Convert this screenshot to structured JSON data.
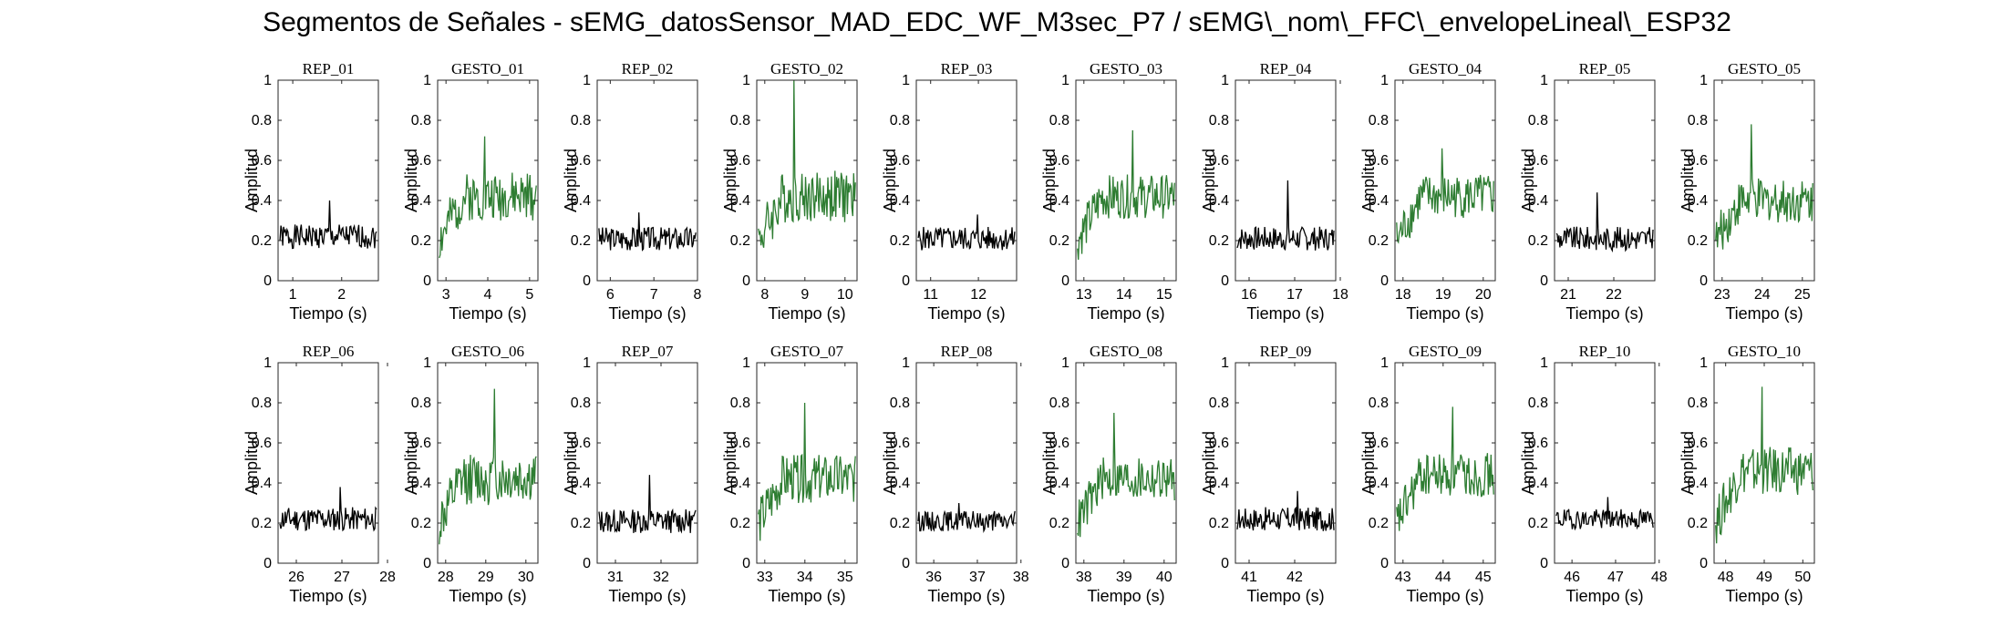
{
  "figure": {
    "title": "Segmentos de Señales - sEMG_datosSensor_MAD_EDC_WF_M3sec_P7 / sEMG\\_nom\\_FFC\\_envelopeLineal\\_ESP32"
  },
  "colors": {
    "rep": "#000000",
    "gesto": "#2e7d32"
  },
  "chart_data": [
    {
      "type": "line",
      "title": "REP_01",
      "xlabel": "Tiempo (s)",
      "ylabel": "Amplitud",
      "xlim": [
        0.7,
        2.75
      ],
      "ylim": [
        0,
        1
      ],
      "xticks": [
        1,
        2
      ],
      "yticks": [
        0,
        0.2,
        0.4,
        0.6,
        0.8,
        1
      ],
      "color": "#000000",
      "seed": 1,
      "base": 0.22,
      "spread": 0.06,
      "peak": 0.4
    },
    {
      "type": "line",
      "title": "GESTO_01",
      "xlabel": "Tiempo (s)",
      "ylabel": "Amplitud",
      "xlim": [
        2.8,
        5.2
      ],
      "ylim": [
        0,
        1
      ],
      "xticks": [
        3,
        4,
        5
      ],
      "yticks": [
        0,
        0.2,
        0.4,
        0.6,
        0.8,
        1
      ],
      "color": "#2e7d32",
      "seed": 2,
      "base": 0.42,
      "spread": 0.12,
      "peak": 0.72
    },
    {
      "type": "line",
      "title": "REP_02",
      "xlabel": "Tiempo (s)",
      "ylabel": "Amplitud",
      "xlim": [
        5.7,
        8.0
      ],
      "ylim": [
        0,
        1
      ],
      "xticks": [
        6,
        7,
        8
      ],
      "yticks": [
        0,
        0.2,
        0.4,
        0.6,
        0.8,
        1
      ],
      "color": "#000000",
      "seed": 3,
      "base": 0.21,
      "spread": 0.06,
      "peak": 0.34
    },
    {
      "type": "line",
      "title": "GESTO_02",
      "xlabel": "Tiempo (s)",
      "ylabel": "Amplitud",
      "xlim": [
        7.8,
        10.3
      ],
      "ylim": [
        0,
        1
      ],
      "xticks": [
        8,
        9,
        10
      ],
      "yticks": [
        0,
        0.2,
        0.4,
        0.6,
        0.8,
        1
      ],
      "color": "#2e7d32",
      "seed": 4,
      "base": 0.42,
      "spread": 0.13,
      "peak": 1.0
    },
    {
      "type": "line",
      "title": "REP_03",
      "xlabel": "Tiempo (s)",
      "ylabel": "Amplitud",
      "xlim": [
        10.7,
        12.8
      ],
      "ylim": [
        0,
        1
      ],
      "xticks": [
        11,
        12
      ],
      "yticks": [
        0,
        0.2,
        0.4,
        0.6,
        0.8,
        1
      ],
      "color": "#000000",
      "seed": 5,
      "base": 0.21,
      "spread": 0.06,
      "peak": 0.33
    },
    {
      "type": "line",
      "title": "GESTO_03",
      "xlabel": "Tiempo (s)",
      "ylabel": "Amplitud",
      "xlim": [
        12.8,
        15.3
      ],
      "ylim": [
        0,
        1
      ],
      "xticks": [
        13,
        14,
        15
      ],
      "yticks": [
        0,
        0.2,
        0.4,
        0.6,
        0.8,
        1
      ],
      "color": "#2e7d32",
      "seed": 6,
      "base": 0.42,
      "spread": 0.11,
      "peak": 0.75
    },
    {
      "type": "line",
      "title": "REP_04",
      "xlabel": "Tiempo (s)",
      "ylabel": "Amplitud",
      "xlim": [
        15.7,
        17.9
      ],
      "ylim": [
        0,
        1
      ],
      "xticks": [
        16,
        17,
        18
      ],
      "yticks": [
        0,
        0.2,
        0.4,
        0.6,
        0.8,
        1
      ],
      "color": "#000000",
      "seed": 7,
      "base": 0.21,
      "spread": 0.06,
      "peak": 0.5
    },
    {
      "type": "line",
      "title": "GESTO_04",
      "xlabel": "Tiempo (s)",
      "ylabel": "Amplitud",
      "xlim": [
        17.8,
        20.3
      ],
      "ylim": [
        0,
        1
      ],
      "xticks": [
        18,
        19,
        20
      ],
      "yticks": [
        0,
        0.2,
        0.4,
        0.6,
        0.8,
        1
      ],
      "color": "#2e7d32",
      "seed": 8,
      "base": 0.42,
      "spread": 0.11,
      "peak": 0.66
    },
    {
      "type": "line",
      "title": "REP_05",
      "xlabel": "Tiempo (s)",
      "ylabel": "Amplitud",
      "xlim": [
        20.7,
        22.9
      ],
      "ylim": [
        0,
        1
      ],
      "xticks": [
        21,
        22
      ],
      "yticks": [
        0,
        0.2,
        0.4,
        0.6,
        0.8,
        1
      ],
      "color": "#000000",
      "seed": 9,
      "base": 0.21,
      "spread": 0.06,
      "peak": 0.44
    },
    {
      "type": "line",
      "title": "GESTO_05",
      "xlabel": "Tiempo (s)",
      "ylabel": "Amplitud",
      "xlim": [
        22.8,
        25.3
      ],
      "ylim": [
        0,
        1
      ],
      "xticks": [
        23,
        24,
        25
      ],
      "yticks": [
        0,
        0.2,
        0.4,
        0.6,
        0.8,
        1
      ],
      "color": "#2e7d32",
      "seed": 10,
      "base": 0.4,
      "spread": 0.11,
      "peak": 0.78
    },
    {
      "type": "line",
      "title": "REP_06",
      "xlabel": "Tiempo (s)",
      "ylabel": "Amplitud",
      "xlim": [
        25.6,
        27.8
      ],
      "ylim": [
        0,
        1
      ],
      "xticks": [
        26,
        27,
        28
      ],
      "yticks": [
        0,
        0.2,
        0.4,
        0.6,
        0.8,
        1
      ],
      "color": "#000000",
      "seed": 11,
      "base": 0.22,
      "spread": 0.06,
      "peak": 0.38
    },
    {
      "type": "line",
      "title": "GESTO_06",
      "xlabel": "Tiempo (s)",
      "ylabel": "Amplitud",
      "xlim": [
        27.8,
        30.3
      ],
      "ylim": [
        0,
        1
      ],
      "xticks": [
        28,
        29,
        30
      ],
      "yticks": [
        0,
        0.2,
        0.4,
        0.6,
        0.8,
        1
      ],
      "color": "#2e7d32",
      "seed": 12,
      "base": 0.42,
      "spread": 0.13,
      "peak": 0.87
    },
    {
      "type": "line",
      "title": "REP_07",
      "xlabel": "Tiempo (s)",
      "ylabel": "Amplitud",
      "xlim": [
        30.6,
        32.8
      ],
      "ylim": [
        0,
        1
      ],
      "xticks": [
        31,
        32
      ],
      "yticks": [
        0,
        0.2,
        0.4,
        0.6,
        0.8,
        1
      ],
      "color": "#000000",
      "seed": 13,
      "base": 0.21,
      "spread": 0.06,
      "peak": 0.44
    },
    {
      "type": "line",
      "title": "GESTO_07",
      "xlabel": "Tiempo (s)",
      "ylabel": "Amplitud",
      "xlim": [
        32.8,
        35.3
      ],
      "ylim": [
        0,
        1
      ],
      "xticks": [
        33,
        34,
        35
      ],
      "yticks": [
        0,
        0.2,
        0.4,
        0.6,
        0.8,
        1
      ],
      "color": "#2e7d32",
      "seed": 14,
      "base": 0.42,
      "spread": 0.12,
      "peak": 0.8
    },
    {
      "type": "line",
      "title": "REP_08",
      "xlabel": "Tiempo (s)",
      "ylabel": "Amplitud",
      "xlim": [
        35.6,
        37.9
      ],
      "ylim": [
        0,
        1
      ],
      "xticks": [
        36,
        37,
        38
      ],
      "yticks": [
        0,
        0.2,
        0.4,
        0.6,
        0.8,
        1
      ],
      "color": "#000000",
      "seed": 15,
      "base": 0.21,
      "spread": 0.05,
      "peak": 0.3
    },
    {
      "type": "line",
      "title": "GESTO_08",
      "xlabel": "Tiempo (s)",
      "ylabel": "Amplitud",
      "xlim": [
        37.8,
        40.3
      ],
      "ylim": [
        0,
        1
      ],
      "xticks": [
        38,
        39,
        40
      ],
      "yticks": [
        0,
        0.2,
        0.4,
        0.6,
        0.8,
        1
      ],
      "color": "#2e7d32",
      "seed": 16,
      "base": 0.42,
      "spread": 0.11,
      "peak": 0.75
    },
    {
      "type": "line",
      "title": "REP_09",
      "xlabel": "Tiempo (s)",
      "ylabel": "Amplitud",
      "xlim": [
        40.7,
        42.9
      ],
      "ylim": [
        0,
        1
      ],
      "xticks": [
        41,
        42
      ],
      "yticks": [
        0,
        0.2,
        0.4,
        0.6,
        0.8,
        1
      ],
      "color": "#000000",
      "seed": 17,
      "base": 0.22,
      "spread": 0.06,
      "peak": 0.36
    },
    {
      "type": "line",
      "title": "GESTO_09",
      "xlabel": "Tiempo (s)",
      "ylabel": "Amplitud",
      "xlim": [
        42.8,
        45.3
      ],
      "ylim": [
        0,
        1
      ],
      "xticks": [
        43,
        44,
        45
      ],
      "yticks": [
        0,
        0.2,
        0.4,
        0.6,
        0.8,
        1
      ],
      "color": "#2e7d32",
      "seed": 18,
      "base": 0.44,
      "spread": 0.11,
      "peak": 0.78
    },
    {
      "type": "line",
      "title": "REP_10",
      "xlabel": "Tiempo (s)",
      "ylabel": "Amplitud",
      "xlim": [
        45.6,
        47.9
      ],
      "ylim": [
        0,
        1
      ],
      "xticks": [
        46,
        47,
        48
      ],
      "yticks": [
        0,
        0.2,
        0.4,
        0.6,
        0.8,
        1
      ],
      "color": "#000000",
      "seed": 19,
      "base": 0.22,
      "spread": 0.05,
      "peak": 0.33
    },
    {
      "type": "line",
      "title": "GESTO_10",
      "xlabel": "Tiempo (s)",
      "ylabel": "Amplitud",
      "xlim": [
        47.7,
        50.3
      ],
      "ylim": [
        0,
        1
      ],
      "xticks": [
        48,
        49,
        50
      ],
      "yticks": [
        0,
        0.2,
        0.4,
        0.6,
        0.8,
        1
      ],
      "color": "#2e7d32",
      "seed": 20,
      "base": 0.46,
      "spread": 0.12,
      "peak": 0.88
    }
  ]
}
